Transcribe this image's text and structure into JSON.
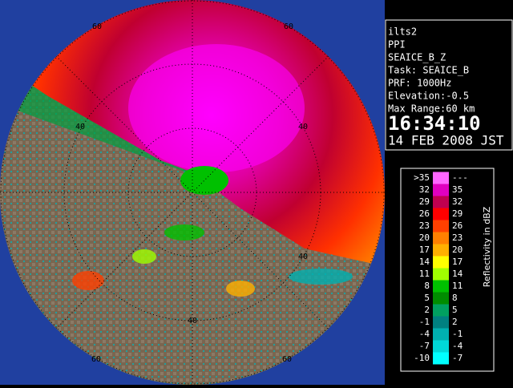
{
  "info": {
    "lines": [
      "ilts2",
      "PPI",
      "SEAICE_B_Z",
      "Task: SEAICE_B",
      "PRF: 1000Hz",
      "Elevation:-0.5",
      "Max Range:60 km"
    ],
    "time": "16:34:10",
    "date": "14 FEB 2008 JST"
  },
  "range_labels": [
    "60",
    "60",
    "40",
    "40",
    "40",
    "40",
    "60",
    "60"
  ],
  "legend": {
    "title": "Reflectivity in dBZ",
    "rows": [
      {
        "low": ">35",
        "high": "---",
        "color": "#ff66ff"
      },
      {
        "low": "32",
        "high": "35",
        "color": "#e000c0"
      },
      {
        "low": "29",
        "high": "32",
        "color": "#c00050"
      },
      {
        "low": "26",
        "high": "29",
        "color": "#ff0000"
      },
      {
        "low": "23",
        "high": "26",
        "color": "#ff4000"
      },
      {
        "low": "20",
        "high": "23",
        "color": "#ff8000"
      },
      {
        "low": "17",
        "high": "20",
        "color": "#ffb000"
      },
      {
        "low": "14",
        "high": "17",
        "color": "#ffff00"
      },
      {
        "low": "11",
        "high": "14",
        "color": "#a0ff00"
      },
      {
        "low": "8",
        "high": "11",
        "color": "#00c000"
      },
      {
        "low": "5",
        "high": "8",
        "color": "#008c00"
      },
      {
        "low": "2",
        "high": "5",
        "color": "#00a060"
      },
      {
        "low": "-1",
        "high": "2",
        "color": "#008080"
      },
      {
        "low": "-4",
        "high": "-1",
        "color": "#00b0b0"
      },
      {
        "low": "-7",
        "high": "-4",
        "color": "#00d8d8"
      },
      {
        "low": "-10",
        "high": "-7",
        "color": "#00ffff"
      }
    ]
  }
}
